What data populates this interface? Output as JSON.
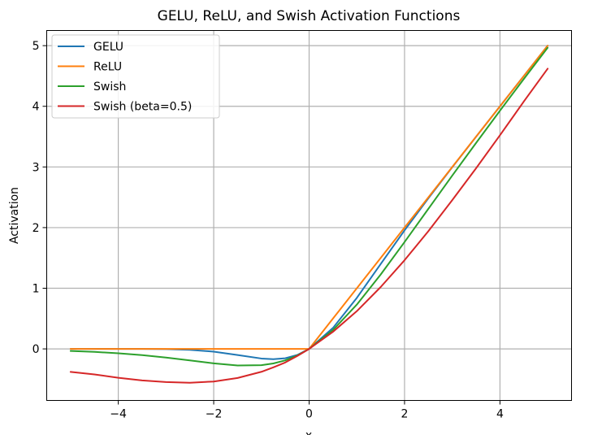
{
  "chart_data": {
    "type": "line",
    "title": "GELU, ReLU, and Swish Activation Functions",
    "xlabel": "x",
    "ylabel": "Activation",
    "xlim": [
      -5.5,
      5.5
    ],
    "ylim": [
      -0.85,
      5.25
    ],
    "xticks": [
      -4,
      -2,
      0,
      2,
      4
    ],
    "xtick_labels": [
      "−4",
      "−2",
      "0",
      "2",
      "4"
    ],
    "yticks": [
      0,
      1,
      2,
      3,
      4,
      5
    ],
    "ytick_labels": [
      "0",
      "1",
      "2",
      "3",
      "4",
      "5"
    ],
    "grid": true,
    "legend_position": "upper-left",
    "x": [
      -5,
      -4.5,
      -4,
      -3.5,
      -3,
      -2.5,
      -2,
      -1.5,
      -1,
      -0.75,
      -0.5,
      -0.25,
      0,
      0.5,
      1,
      1.5,
      2,
      2.5,
      3,
      3.5,
      4,
      4.5,
      5
    ],
    "series": [
      {
        "name": "GELU",
        "color": "#1f77b4",
        "values": [
          0,
          0,
          -0.0001,
          -0.0008,
          -0.004,
          -0.0155,
          -0.0454,
          -0.1004,
          -0.1587,
          -0.17,
          -0.1543,
          -0.1003,
          0,
          0.3457,
          0.8413,
          1.3996,
          1.9546,
          2.4845,
          2.996,
          3.4992,
          3.9999,
          4.5,
          5.0
        ]
      },
      {
        "name": "ReLU",
        "color": "#ff7f0e",
        "values": [
          0,
          0,
          0,
          0,
          0,
          0,
          0,
          0,
          0,
          0,
          0,
          0,
          0,
          0.5,
          1,
          1.5,
          2,
          2.5,
          3,
          3.5,
          4,
          4.5,
          5
        ]
      },
      {
        "name": "Swish",
        "color": "#2ca02c",
        "values": [
          -0.0335,
          -0.0493,
          -0.0719,
          -0.1033,
          -0.1423,
          -0.1896,
          -0.2384,
          -0.2736,
          -0.2689,
          -0.2396,
          -0.1888,
          -0.11,
          0,
          0.3112,
          0.7311,
          1.2264,
          1.7616,
          2.3104,
          2.8577,
          3.3967,
          3.9281,
          4.4507,
          4.9665
        ]
      },
      {
        "name": "Swish (beta=0.5)",
        "color": "#d62728",
        "values": [
          -0.3793,
          -0.421,
          -0.4768,
          -0.5203,
          -0.547,
          -0.558,
          -0.5379,
          -0.4798,
          -0.3775,
          -0.3045,
          -0.2236,
          -0.1171,
          0,
          0.282,
          0.6225,
          1.0202,
          1.4621,
          1.942,
          2.453,
          2.9797,
          3.5232,
          4.079,
          4.6207
        ]
      }
    ]
  }
}
